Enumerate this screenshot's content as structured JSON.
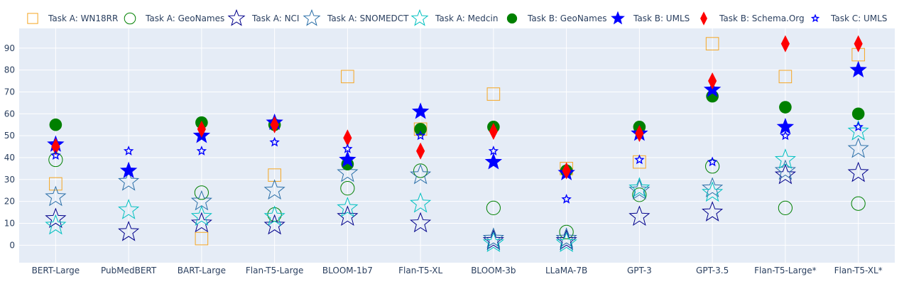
{
  "chart_data": {
    "type": "scatter",
    "title": "",
    "xlabel": "",
    "ylabel": "",
    "categories": [
      "BERT-Large",
      "PubMedBERT",
      "BART-Large",
      "Flan-T5-Large",
      "BLOOM-1b7",
      "Flan-T5-XL",
      "BLOOM-3b",
      "LLaMA-7B",
      "GPT-3",
      "GPT-3.5",
      "Flan-T5-Large*",
      "Flan-T5-XL*"
    ],
    "yticks": [
      0,
      10,
      20,
      30,
      40,
      50,
      60,
      70,
      80,
      90
    ],
    "ylim": [
      -8,
      99
    ],
    "grid": true,
    "legend_position": "top",
    "series": [
      {
        "name": "Task A: WN18RR",
        "marker": "square-open",
        "color": "#f5a623",
        "values": [
          28,
          null,
          3,
          32,
          77,
          53,
          69,
          35,
          38,
          92,
          77,
          87
        ]
      },
      {
        "name": "Task A: GeoNames",
        "marker": "circle-open",
        "color": "#008000",
        "values": [
          39,
          null,
          24,
          14,
          26,
          34,
          17,
          6,
          23,
          36,
          17,
          19
        ]
      },
      {
        "name": "Task A: NCI",
        "marker": "star-open",
        "color": "#00008b",
        "values": [
          12,
          6,
          10,
          9,
          13,
          10,
          2,
          2,
          13,
          15,
          32,
          33
        ]
      },
      {
        "name": "Task A: SNOMEDCT",
        "marker": "star-open",
        "color": "#2b6fa8",
        "values": [
          22,
          29,
          20,
          25,
          33,
          32,
          3,
          3,
          25,
          26,
          34,
          44
        ]
      },
      {
        "name": "Task A: Medcin",
        "marker": "star-open",
        "color": "#00c0c0",
        "values": [
          9,
          16,
          13,
          13,
          17,
          19,
          1,
          1,
          26,
          24,
          39,
          52
        ]
      },
      {
        "name": "Task B: GeoNames",
        "marker": "circle",
        "color": "#008000",
        "values": [
          55,
          null,
          56,
          55,
          37,
          53,
          54,
          34,
          54,
          68,
          63,
          60
        ]
      },
      {
        "name": "Task B: UMLS",
        "marker": "star",
        "color": "#0000ff",
        "values": [
          46,
          34,
          50,
          56,
          39,
          61,
          38,
          33,
          51,
          71,
          54,
          80
        ]
      },
      {
        "name": "Task B: Schema.Org",
        "marker": "diamond-tall",
        "color": "#ff0000",
        "values": [
          45,
          null,
          53,
          55,
          49,
          43,
          52,
          34,
          51,
          75,
          92,
          92
        ]
      },
      {
        "name": "Task C: UMLS",
        "marker": "star-small",
        "color": "#0000ff",
        "values": [
          41,
          43,
          43,
          47,
          44,
          50,
          43,
          21,
          39,
          38,
          50,
          54
        ]
      }
    ]
  }
}
